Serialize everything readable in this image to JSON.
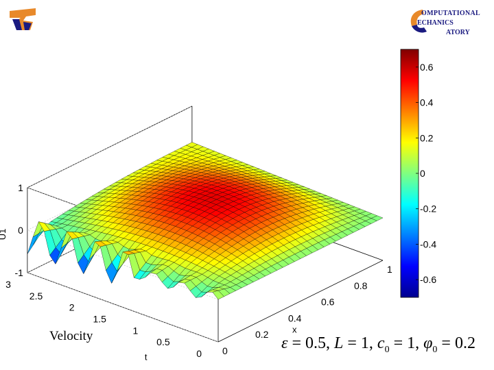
{
  "chart_data": {
    "type": "surface",
    "zlabel": "U1",
    "xlabel": "x",
    "ylabel": "t",
    "xlim": [
      0,
      1
    ],
    "ylim": [
      0,
      3
    ],
    "zlim": [
      -1,
      1
    ],
    "x_ticks": [
      "0",
      "0.2",
      "0.4",
      "0.6",
      "0.8",
      "1"
    ],
    "t_ticks": [
      "0",
      "0.5",
      "1",
      "1.5",
      "2",
      "2.5",
      "3"
    ],
    "z_ticks": [
      "-1",
      "0",
      "1"
    ],
    "colorbar": {
      "range": [
        -0.7,
        0.7
      ],
      "tick_values": [
        -0.6,
        -0.4,
        -0.2,
        0,
        0.2,
        0.4,
        0.6
      ],
      "tick_labels": [
        "-0.6",
        "-0.4",
        "-0.2",
        "0",
        "0.2",
        "0.4",
        "0.6"
      ],
      "colormap": "jet"
    },
    "grid": true
  },
  "caption": "Velocity",
  "equation": {
    "eps": "ε",
    "eps_val": "= 0.5,",
    "L": "L",
    "L_val": "= 1,",
    "c": "c",
    "c_sub": "0",
    "c_val": "= 1,",
    "phi": "φ",
    "phi_sub": "0",
    "phi_val": "= 0.2"
  },
  "logo_right": {
    "line1": "OMPUTATIONAL",
    "line2": "ECHANICS",
    "line3": "ATORY"
  },
  "colors": {
    "logo_blue": "#1a1a80",
    "logo_orange": "#e8892a"
  }
}
